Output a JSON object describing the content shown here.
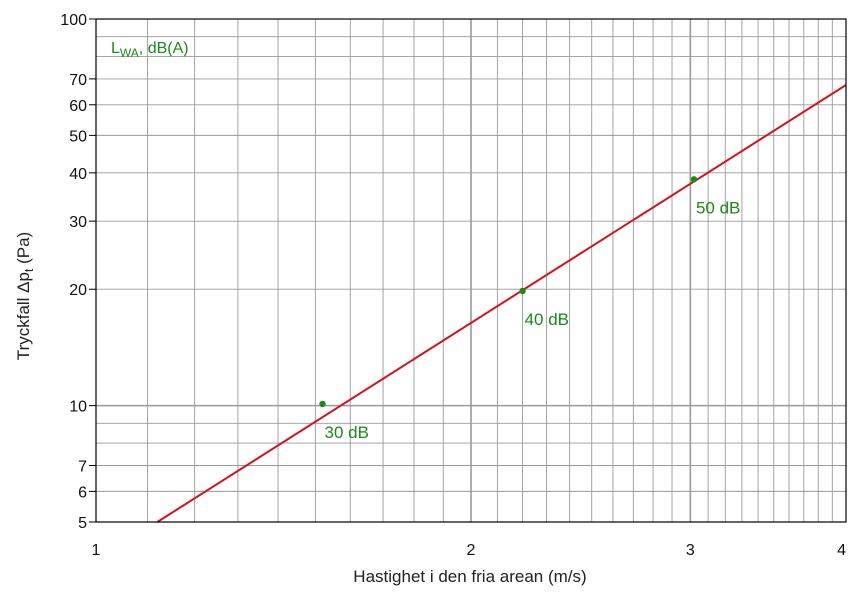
{
  "chart_data": {
    "type": "line",
    "xscale": "log",
    "yscale": "log",
    "xlim": [
      1,
      4
    ],
    "ylim": [
      5,
      100
    ],
    "x_ticks": [
      1,
      2,
      3,
      4
    ],
    "x_tick_labels": [
      "1",
      "2",
      "3",
      "4"
    ],
    "y_ticks": [
      5,
      6,
      7,
      10,
      20,
      30,
      40,
      50,
      60,
      70,
      100
    ],
    "y_tick_labels": [
      "5",
      "6",
      "7",
      "10",
      "20",
      "30",
      "40",
      "50",
      "60",
      "70",
      "100"
    ],
    "x_minor_grid": [
      1.1,
      1.2,
      1.3,
      1.4,
      1.5,
      1.6,
      1.7,
      1.8,
      1.9,
      2,
      2.1,
      2.2,
      2.3,
      2.4,
      2.5,
      2.6,
      2.7,
      2.8,
      2.9,
      3,
      3.1,
      3.2,
      3.3,
      3.4,
      3.5,
      3.6,
      3.7,
      3.8,
      3.9
    ],
    "y_grid": [
      6,
      7,
      8,
      9,
      10,
      20,
      30,
      40,
      50,
      60,
      70,
      80,
      90
    ],
    "xlabel": "Hastighet i den fria arean (m/s)",
    "ylabel_main": "Tryckfall Δp",
    "ylabel_sub": "t",
    "ylabel_unit": " (Pa)",
    "legend_main": "L",
    "legend_sub": "WA",
    "legend_rest": ", dB(A)",
    "grid": true,
    "series": [
      {
        "x": [
          1.12,
          4.0
        ],
        "y": [
          5.0,
          67.5
        ],
        "color": "#d0141e"
      }
    ],
    "points": [
      {
        "x": 1.52,
        "y": 10.1,
        "label": "30 dB"
      },
      {
        "x": 2.2,
        "y": 19.8,
        "label": "40 dB"
      },
      {
        "x": 3.02,
        "y": 38.5,
        "label": "50 dB"
      }
    ],
    "colors": {
      "line": "#d0141e",
      "points": "#1a8a1a",
      "grid": "#9a9a9a",
      "frame": "#000000"
    }
  }
}
